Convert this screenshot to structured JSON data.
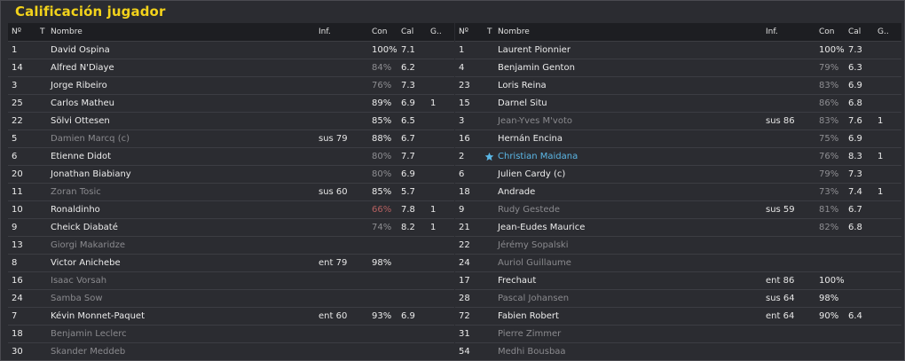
{
  "title": "Calificación jugador",
  "headers": {
    "no": "Nº",
    "t": "T",
    "name": "Nombre",
    "inf": "Inf.",
    "con": "Con",
    "cal": "Cal",
    "g": "G.."
  },
  "colors": {
    "title": "#f2d21b",
    "selected": "#5bb7e6",
    "dimmed": "#8a8a8e",
    "bad": "#b56060"
  },
  "left": [
    {
      "no": "1",
      "name": "David Ospina",
      "inf": "",
      "con": "100%",
      "cal": "7.1",
      "g": "",
      "dim": false,
      "conStyle": "",
      "calStyle": ""
    },
    {
      "no": "14",
      "name": "Alfred N'Diaye",
      "inf": "",
      "con": "84%",
      "cal": "6.2",
      "g": "",
      "dim": false,
      "conStyle": "low",
      "calStyle": ""
    },
    {
      "no": "3",
      "name": "Jorge Ribeiro",
      "inf": "",
      "con": "76%",
      "cal": "7.3",
      "g": "",
      "dim": false,
      "conStyle": "low",
      "calStyle": ""
    },
    {
      "no": "25",
      "name": "Carlos Matheu",
      "inf": "",
      "con": "89%",
      "cal": "6.9",
      "g": "1",
      "dim": false,
      "conStyle": "",
      "calStyle": ""
    },
    {
      "no": "22",
      "name": "Sölvi Ottesen",
      "inf": "",
      "con": "85%",
      "cal": "6.5",
      "g": "",
      "dim": false,
      "conStyle": "",
      "calStyle": ""
    },
    {
      "no": "5",
      "name": "Damien Marcq (c)",
      "inf": "sus 79",
      "con": "88%",
      "cal": "6.7",
      "g": "",
      "dim": true,
      "conStyle": "",
      "calStyle": ""
    },
    {
      "no": "6",
      "name": "Etienne Didot",
      "inf": "",
      "con": "80%",
      "cal": "7.7",
      "g": "",
      "dim": false,
      "conStyle": "low",
      "calStyle": ""
    },
    {
      "no": "20",
      "name": "Jonathan Biabiany",
      "inf": "",
      "con": "80%",
      "cal": "6.9",
      "g": "",
      "dim": false,
      "conStyle": "low",
      "calStyle": ""
    },
    {
      "no": "11",
      "name": "Zoran Tosic",
      "inf": "sus 60",
      "con": "85%",
      "cal": "5.7",
      "g": "",
      "dim": true,
      "conStyle": "",
      "calStyle": ""
    },
    {
      "no": "10",
      "name": "Ronaldinho",
      "inf": "",
      "con": "66%",
      "cal": "7.8",
      "g": "1",
      "dim": false,
      "conStyle": "bad",
      "calStyle": ""
    },
    {
      "no": "9",
      "name": "Cheick Diabaté",
      "inf": "",
      "con": "74%",
      "cal": "8.2",
      "g": "1",
      "dim": false,
      "conStyle": "low",
      "calStyle": ""
    },
    {
      "no": "13",
      "name": "Giorgi Makaridze",
      "inf": "",
      "con": "",
      "cal": "",
      "g": "",
      "dim": true,
      "conStyle": "",
      "calStyle": ""
    },
    {
      "no": "8",
      "name": "Victor Anichebe",
      "inf": "ent 79",
      "con": "98%",
      "cal": "",
      "g": "",
      "dim": false,
      "conStyle": "",
      "calStyle": ""
    },
    {
      "no": "16",
      "name": "Isaac Vorsah",
      "inf": "",
      "con": "",
      "cal": "",
      "g": "",
      "dim": true,
      "conStyle": "",
      "calStyle": ""
    },
    {
      "no": "24",
      "name": "Samba Sow",
      "inf": "",
      "con": "",
      "cal": "",
      "g": "",
      "dim": true,
      "conStyle": "",
      "calStyle": ""
    },
    {
      "no": "7",
      "name": "Kévin Monnet-Paquet",
      "inf": "ent 60",
      "con": "93%",
      "cal": "6.9",
      "g": "",
      "dim": false,
      "conStyle": "",
      "calStyle": ""
    },
    {
      "no": "18",
      "name": "Benjamin Leclerc",
      "inf": "",
      "con": "",
      "cal": "",
      "g": "",
      "dim": true,
      "conStyle": "",
      "calStyle": ""
    },
    {
      "no": "30",
      "name": "Skander Meddeb",
      "inf": "",
      "con": "",
      "cal": "",
      "g": "",
      "dim": true,
      "conStyle": "",
      "calStyle": ""
    }
  ],
  "right": [
    {
      "no": "1",
      "name": "Laurent Pionnier",
      "inf": "",
      "con": "100%",
      "cal": "7.3",
      "g": "",
      "dim": false,
      "conStyle": "",
      "calStyle": "",
      "selected": false
    },
    {
      "no": "4",
      "name": "Benjamin Genton",
      "inf": "",
      "con": "79%",
      "cal": "6.3",
      "g": "",
      "dim": false,
      "conStyle": "low",
      "calStyle": "",
      "selected": false
    },
    {
      "no": "23",
      "name": "Loris Reina",
      "inf": "",
      "con": "83%",
      "cal": "6.9",
      "g": "",
      "dim": false,
      "conStyle": "low",
      "calStyle": "",
      "selected": false
    },
    {
      "no": "15",
      "name": "Darnel Situ",
      "inf": "",
      "con": "86%",
      "cal": "6.8",
      "g": "",
      "dim": false,
      "conStyle": "low",
      "calStyle": "",
      "selected": false
    },
    {
      "no": "3",
      "name": "Jean-Yves M'voto",
      "inf": "sus 86",
      "con": "83%",
      "cal": "7.6",
      "g": "1",
      "dim": true,
      "conStyle": "low",
      "calStyle": "",
      "selected": false
    },
    {
      "no": "16",
      "name": "Hernán Encina",
      "inf": "",
      "con": "75%",
      "cal": "6.9",
      "g": "",
      "dim": false,
      "conStyle": "low",
      "calStyle": "",
      "selected": false
    },
    {
      "no": "2",
      "name": "Christian Maidana",
      "inf": "",
      "con": "76%",
      "cal": "8.3",
      "g": "1",
      "dim": false,
      "conStyle": "low",
      "calStyle": "",
      "selected": true
    },
    {
      "no": "6",
      "name": "Julien Cardy (c)",
      "inf": "",
      "con": "79%",
      "cal": "7.3",
      "g": "",
      "dim": false,
      "conStyle": "low",
      "calStyle": "",
      "selected": false
    },
    {
      "no": "18",
      "name": "Andrade",
      "inf": "",
      "con": "73%",
      "cal": "7.4",
      "g": "1",
      "dim": false,
      "conStyle": "low",
      "calStyle": "",
      "selected": false
    },
    {
      "no": "9",
      "name": "Rudy Gestede",
      "inf": "sus 59",
      "con": "81%",
      "cal": "6.7",
      "g": "",
      "dim": true,
      "conStyle": "low",
      "calStyle": "",
      "selected": false
    },
    {
      "no": "21",
      "name": "Jean-Eudes Maurice",
      "inf": "",
      "con": "82%",
      "cal": "6.8",
      "g": "",
      "dim": false,
      "conStyle": "low",
      "calStyle": "",
      "selected": false
    },
    {
      "no": "22",
      "name": "Jérémy Sopalski",
      "inf": "",
      "con": "",
      "cal": "",
      "g": "",
      "dim": true,
      "conStyle": "",
      "calStyle": "",
      "selected": false
    },
    {
      "no": "24",
      "name": "Auriol Guillaume",
      "inf": "",
      "con": "",
      "cal": "",
      "g": "",
      "dim": true,
      "conStyle": "",
      "calStyle": "",
      "selected": false
    },
    {
      "no": "17",
      "name": "Frechaut",
      "inf": "ent 86",
      "con": "100%",
      "cal": "",
      "g": "",
      "dim": false,
      "conStyle": "",
      "calStyle": "",
      "selected": false
    },
    {
      "no": "28",
      "name": "Pascal Johansen",
      "inf": "sus 64",
      "con": "98%",
      "cal": "",
      "g": "",
      "dim": true,
      "conStyle": "",
      "calStyle": "",
      "selected": false
    },
    {
      "no": "72",
      "name": "Fabien Robert",
      "inf": "ent 64",
      "con": "90%",
      "cal": "6.4",
      "g": "",
      "dim": false,
      "conStyle": "",
      "calStyle": "",
      "selected": false
    },
    {
      "no": "31",
      "name": "Pierre Zimmer",
      "inf": "",
      "con": "",
      "cal": "",
      "g": "",
      "dim": true,
      "conStyle": "",
      "calStyle": "",
      "selected": false
    },
    {
      "no": "54",
      "name": "Medhi Bousbaa",
      "inf": "",
      "con": "",
      "cal": "",
      "g": "",
      "dim": true,
      "conStyle": "",
      "calStyle": "",
      "selected": false
    }
  ]
}
